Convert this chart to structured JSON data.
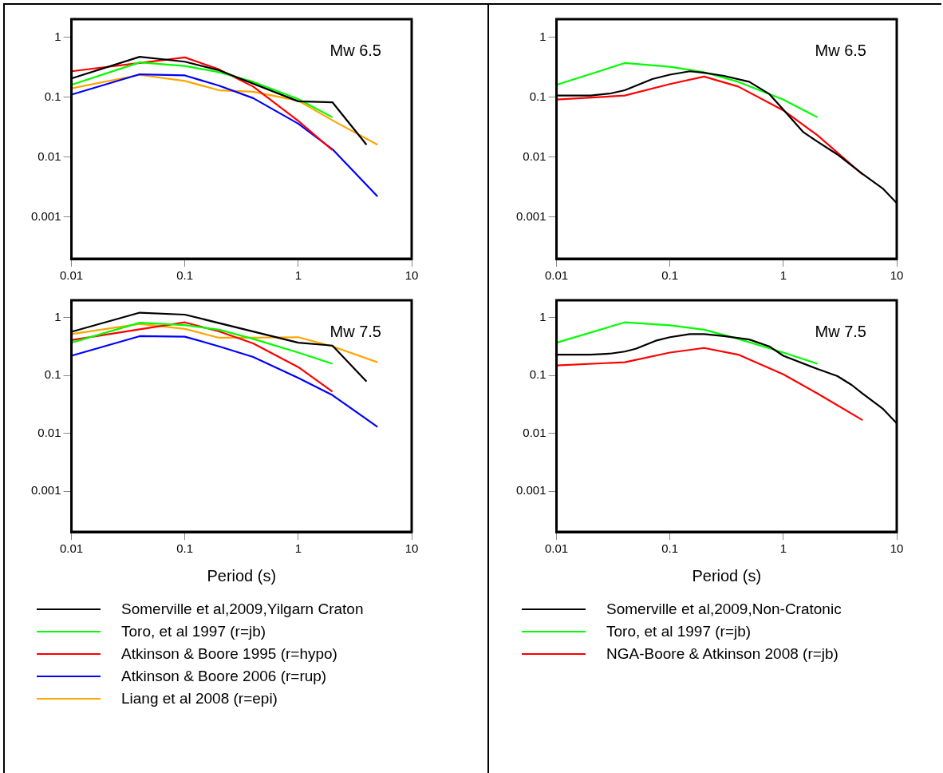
{
  "chart_data": [
    {
      "type": "line",
      "log": "xy",
      "xlim": [
        0.01,
        10
      ],
      "ylim": [
        0.0002,
        2
      ],
      "xticks": [
        0.01,
        0.1,
        1,
        10
      ],
      "yticks": [
        0.001,
        0.01,
        0.1,
        1
      ],
      "annotations": [
        "Mw 6.5"
      ],
      "marker": "none",
      "line_style": "solid",
      "series": [
        {
          "color": "#000000",
          "x": [
            0.01,
            0.04,
            0.1,
            0.2,
            1,
            2,
            4
          ],
          "values": [
            0.205,
            0.47,
            0.39,
            0.28,
            0.085,
            0.082,
            0.016
          ]
        },
        {
          "color": "#00ff00",
          "x": [
            0.01,
            0.04,
            0.1,
            0.2,
            0.4,
            1,
            2
          ],
          "values": [
            0.16,
            0.38,
            0.33,
            0.26,
            0.18,
            0.093,
            0.046
          ]
        },
        {
          "color": "#ff0000",
          "x": [
            0.01,
            0.04,
            0.1,
            0.2,
            0.4,
            1,
            2
          ],
          "values": [
            0.27,
            0.37,
            0.46,
            0.29,
            0.15,
            0.04,
            0.013
          ]
        },
        {
          "color": "#0000ff",
          "x": [
            0.01,
            0.04,
            0.1,
            0.2,
            0.4,
            1,
            2,
            5
          ],
          "values": [
            0.11,
            0.24,
            0.23,
            0.155,
            0.096,
            0.036,
            0.0135,
            0.0022
          ]
        },
        {
          "color": "#ffa500",
          "x": [
            0.01,
            0.04,
            0.1,
            0.2,
            0.4,
            1,
            2,
            5
          ],
          "values": [
            0.14,
            0.235,
            0.186,
            0.13,
            0.123,
            0.087,
            0.041,
            0.016
          ]
        }
      ]
    },
    {
      "type": "line",
      "log": "xy",
      "xlim": [
        0.01,
        10
      ],
      "ylim": [
        0.0002,
        2
      ],
      "xticks": [
        0.01,
        0.1,
        1,
        10
      ],
      "yticks": [
        0.001,
        0.01,
        0.1,
        1
      ],
      "annotations": [
        "Mw 6.5"
      ],
      "marker": "none",
      "line_style": "solid",
      "series": [
        {
          "color": "#000000",
          "x": [
            0.01,
            0.02,
            0.03,
            0.04,
            0.07,
            0.1,
            0.15,
            0.2,
            0.3,
            0.5,
            0.75,
            1,
            1.5,
            2,
            3,
            5,
            7.5,
            10
          ],
          "values": [
            0.106,
            0.106,
            0.115,
            0.13,
            0.2,
            0.237,
            0.27,
            0.255,
            0.226,
            0.18,
            0.113,
            0.062,
            0.026,
            0.018,
            0.011,
            0.0052,
            0.003,
            0.0017
          ]
        },
        {
          "color": "#00ff00",
          "x": [
            0.01,
            0.04,
            0.1,
            0.2,
            0.4,
            1,
            2
          ],
          "values": [
            0.16,
            0.37,
            0.32,
            0.26,
            0.18,
            0.091,
            0.046
          ]
        },
        {
          "color": "#ff0000",
          "x": [
            0.01,
            0.04,
            0.1,
            0.2,
            0.4,
            1,
            2,
            5
          ],
          "values": [
            0.091,
            0.106,
            0.165,
            0.22,
            0.15,
            0.06,
            0.023,
            0.0051
          ]
        }
      ]
    },
    {
      "type": "line",
      "log": "xy",
      "xlim": [
        0.01,
        10
      ],
      "ylim": [
        0.0002,
        2
      ],
      "xticks": [
        0.01,
        0.1,
        1,
        10
      ],
      "yticks": [
        0.001,
        0.01,
        0.1,
        1
      ],
      "xlabel": "Period (s)",
      "annotations": [
        "Mw 7.5"
      ],
      "marker": "none",
      "line_style": "solid",
      "legend": "bottom",
      "series": [
        {
          "name": "Somerville et al,2009,Yilgarn Craton",
          "color": "#000000",
          "x": [
            0.01,
            0.04,
            0.1,
            1,
            2,
            4
          ],
          "values": [
            0.57,
            1.22,
            1.13,
            0.37,
            0.33,
            0.079
          ]
        },
        {
          "name": "Toro, et al 1997 (r=jb)",
          "color": "#00ff00",
          "x": [
            0.01,
            0.04,
            0.1,
            0.2,
            0.4,
            1,
            2
          ],
          "values": [
            0.37,
            0.82,
            0.745,
            0.62,
            0.43,
            0.25,
            0.16
          ]
        },
        {
          "name": "Atkinson & Boore 1995 (r=hypo)",
          "color": "#ff0000",
          "x": [
            0.01,
            0.04,
            0.1,
            0.2,
            0.4,
            1,
            2
          ],
          "values": [
            0.41,
            0.63,
            0.83,
            0.58,
            0.36,
            0.14,
            0.053
          ]
        },
        {
          "name": "Atkinson & Boore 2006 (r=rup)",
          "color": "#0000ff",
          "x": [
            0.01,
            0.04,
            0.1,
            0.2,
            0.4,
            1,
            2,
            5
          ],
          "values": [
            0.22,
            0.48,
            0.47,
            0.32,
            0.21,
            0.091,
            0.046,
            0.013
          ]
        },
        {
          "name": "Liang et al 2008 (r=epi)",
          "color": "#ffa500",
          "x": [
            0.01,
            0.04,
            0.1,
            0.2,
            0.4,
            1,
            2,
            5
          ],
          "values": [
            0.52,
            0.78,
            0.64,
            0.45,
            0.45,
            0.46,
            0.32,
            0.17
          ]
        }
      ]
    },
    {
      "type": "line",
      "log": "xy",
      "xlim": [
        0.01,
        10
      ],
      "ylim": [
        0.0002,
        2
      ],
      "xticks": [
        0.01,
        0.1,
        1,
        10
      ],
      "yticks": [
        0.001,
        0.01,
        0.1,
        1
      ],
      "xlabel": "Period (s)",
      "annotations": [
        "Mw 7.5"
      ],
      "marker": "none",
      "line_style": "solid",
      "legend": "bottom",
      "series": [
        {
          "name": "Somerville et al,2009,Non-Cratonic",
          "color": "#000000",
          "x": [
            0.01,
            0.02,
            0.03,
            0.04,
            0.05,
            0.075,
            0.1,
            0.15,
            0.2,
            0.3,
            0.5,
            0.75,
            1,
            2,
            3,
            4,
            5,
            7.5,
            10
          ],
          "values": [
            0.23,
            0.23,
            0.24,
            0.26,
            0.29,
            0.4,
            0.46,
            0.52,
            0.52,
            0.48,
            0.42,
            0.32,
            0.22,
            0.13,
            0.098,
            0.069,
            0.049,
            0.027,
            0.015
          ]
        },
        {
          "name": "Toro, et al 1997 (r=jb)",
          "color": "#00ff00",
          "x": [
            0.01,
            0.04,
            0.1,
            0.2,
            0.4,
            1,
            2
          ],
          "values": [
            0.37,
            0.83,
            0.74,
            0.62,
            0.43,
            0.25,
            0.16
          ]
        },
        {
          "name": "NGA-Boore & Atkinson 2008 (r=jb)",
          "color": "#ff0000",
          "x": [
            0.01,
            0.04,
            0.1,
            0.2,
            0.4,
            1,
            2,
            5
          ],
          "values": [
            0.15,
            0.17,
            0.25,
            0.3,
            0.23,
            0.105,
            0.049,
            0.017
          ]
        }
      ]
    }
  ]
}
